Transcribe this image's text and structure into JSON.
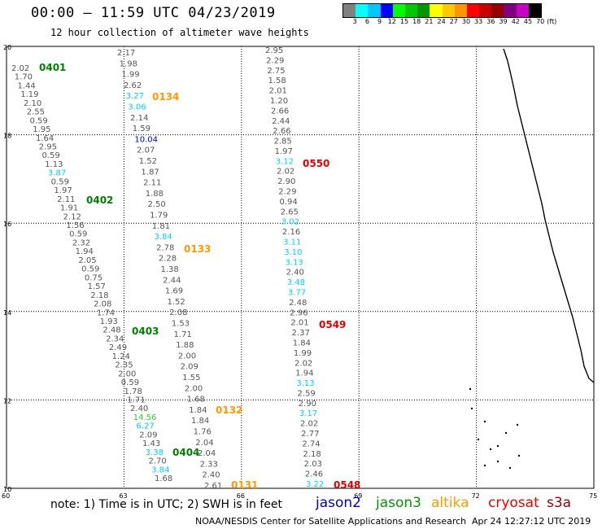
{
  "header": {
    "title": "00:00 – 11:59 UTC 04/23/2019",
    "subtitle": "12 hour collection of altimeter wave heights"
  },
  "colorbar": {
    "unit_label": "(ft)",
    "ticks": [
      "3",
      "6",
      "9",
      "12",
      "15",
      "18",
      "21",
      "24",
      "27",
      "30",
      "33",
      "36",
      "39",
      "42",
      "45",
      "70"
    ],
    "colors": [
      "#808080",
      "#00ffff",
      "#00c8ff",
      "#0000ff",
      "#00ff00",
      "#00c800",
      "#009600",
      "#ffff00",
      "#ffc800",
      "#ff9600",
      "#ff0000",
      "#c80000",
      "#960000",
      "#800080",
      "#c800c8",
      "#000000"
    ]
  },
  "map": {
    "lon_labels": [
      "60",
      "63",
      "66",
      "69",
      "72",
      "75"
    ],
    "lat_labels": [
      "20",
      "18",
      "16",
      "14",
      "12",
      "10"
    ],
    "passes": [
      {
        "label": "0401",
        "color": "#008000"
      },
      {
        "label": "0402",
        "color": "#008000"
      },
      {
        "label": "0403",
        "color": "#008000"
      },
      {
        "label": "0404",
        "color": "#008000"
      },
      {
        "label": "0134",
        "color": "#ff9900"
      },
      {
        "label": "0133",
        "color": "#ff9900"
      },
      {
        "label": "0132",
        "color": "#ff9900"
      },
      {
        "label": "0131",
        "color": "#ff9900"
      },
      {
        "label": "0550",
        "color": "#e00000"
      },
      {
        "label": "0549",
        "color": "#e00000"
      },
      {
        "label": "0548",
        "color": "#e00000"
      }
    ],
    "track_j3": {
      "values": [
        "2.02",
        "1.70",
        "1.44",
        "1.19",
        "2.10",
        "2.55",
        "0.59",
        "1.95",
        "1.64",
        "2.95",
        "0.59",
        "1.13",
        "3.87",
        "0.59",
        "1.97",
        "2.11",
        "1.91",
        "2.12",
        "1.56",
        "0.59",
        "2.32",
        "1.94",
        "2.05",
        "0.59",
        "0.75",
        "1.57",
        "2.18",
        "2.08",
        "1.74",
        "1.93",
        "2.48",
        "2.34",
        "2.49",
        "1.24",
        "2.35",
        "2.00",
        "0.59",
        "1.78",
        "1.71",
        "2.40",
        "14.56",
        "6.27",
        "2.09",
        "1.43",
        "3.38",
        "2.70",
        "3.84",
        "1.68"
      ]
    },
    "track_al": {
      "values": [
        "2.17",
        "1.98",
        "1.99",
        "2.62",
        "3.27",
        "3.06",
        "2.14",
        "1.59",
        "10.04",
        "2.07",
        "1.52",
        "1.87",
        "2.11",
        "1.88",
        "2.50",
        "1.79",
        "1.81",
        "3.84",
        "2.78",
        "2.28",
        "1.38",
        "2.44",
        "1.69",
        "1.52",
        "2.08",
        "1.53",
        "1.71",
        "1.88",
        "2.00",
        "2.09",
        "1.55",
        "2.00",
        "1.68",
        "1.84",
        "1.84",
        "1.76",
        "2.04",
        "2.04",
        "2.33",
        "2.40",
        "2.61"
      ]
    },
    "track_s3": {
      "values": [
        "2.95",
        "2.29",
        "2.75",
        "1.58",
        "2.01",
        "1.20",
        "2.66",
        "2.44",
        "2.66",
        "2.85",
        "1.97",
        "3.12",
        "2.02",
        "2.90",
        "2.29",
        "0.94",
        "2.65",
        "3.02",
        "2.16",
        "3.11",
        "3.10",
        "3.13",
        "2.40",
        "3.48",
        "3.77",
        "2.48",
        "2.96",
        "2.01",
        "2.37",
        "1.84",
        "1.99",
        "2.02",
        "1.94",
        "3.13",
        "2.59",
        "2.90",
        "3.17",
        "2.02",
        "2.77",
        "2.74",
        "2.18",
        "2.03",
        "2.46",
        "3.22"
      ]
    }
  },
  "legend": {
    "jason2": {
      "label": "jason2",
      "color": "#0000cc"
    },
    "jason3": {
      "label": "jason3",
      "color": "#009900"
    },
    "altika": {
      "label": "altika",
      "color": "#ff9900"
    },
    "cryosat": {
      "label": "cryosat",
      "color": "#ee0000"
    },
    "s3a": {
      "label": "s3a",
      "color": "#990000"
    }
  },
  "footer": {
    "note": "note: 1) Time is in UTC; 2) SWH is in feet",
    "credit": "NOAA/NESDIS Center for Satellite Applications and Research",
    "timestamp": "Apr 24 12:27:12 UTC 2019"
  }
}
